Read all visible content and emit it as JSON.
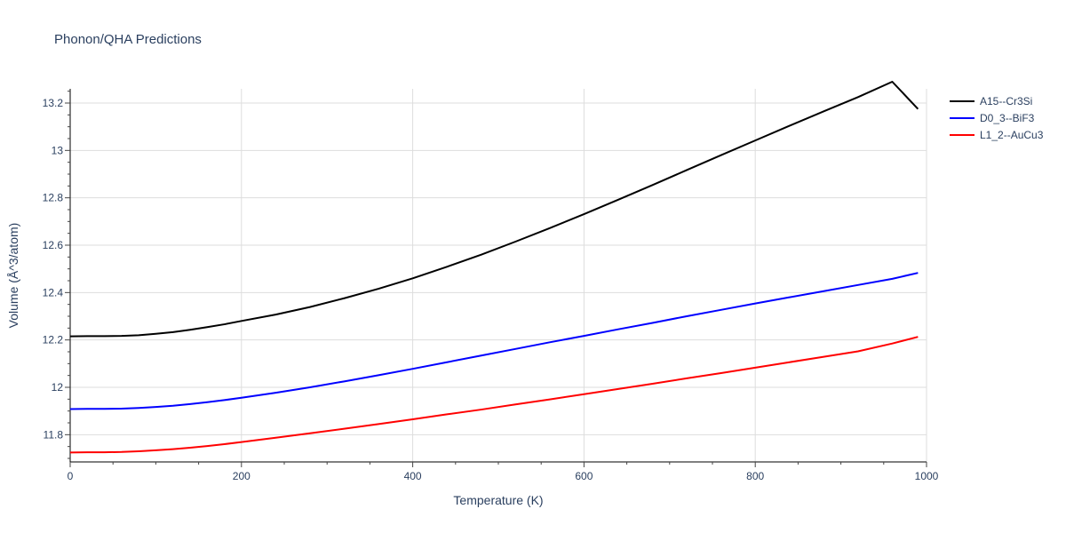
{
  "chart_data": {
    "type": "line",
    "title": "Phonon/QHA Predictions",
    "xlabel": "Temperature (K)",
    "ylabel": "Volume (Å^3/atom)",
    "xlim": [
      0,
      1000
    ],
    "ylim": [
      11.685,
      13.26
    ],
    "x_ticks": [
      0,
      200,
      400,
      600,
      800,
      1000
    ],
    "y_ticks": [
      11.8,
      12,
      12.2,
      12.4,
      12.6,
      12.8,
      13,
      13.2
    ],
    "y_tick_labels": [
      "11.8",
      "12",
      "12.2",
      "12.4",
      "12.6",
      "12.8",
      "13",
      "13.2"
    ],
    "grid": true,
    "legend_position": "top-right",
    "series": [
      {
        "name": "A15--Cr3Si",
        "color": "#000000",
        "x": [
          0,
          20,
          40,
          60,
          80,
          100,
          120,
          140,
          160,
          180,
          200,
          240,
          280,
          320,
          360,
          400,
          440,
          480,
          520,
          560,
          600,
          640,
          680,
          720,
          760,
          800,
          840,
          880,
          920,
          960,
          990
        ],
        "y": [
          12.215,
          12.216,
          12.216,
          12.217,
          12.22,
          12.226,
          12.233,
          12.243,
          12.254,
          12.266,
          12.28,
          12.307,
          12.339,
          12.376,
          12.416,
          12.46,
          12.509,
          12.56,
          12.615,
          12.672,
          12.731,
          12.792,
          12.854,
          12.917,
          12.98,
          13.042,
          13.104,
          13.165,
          13.225,
          13.29,
          13.175
        ]
      },
      {
        "name": "D0_3--BiF3",
        "color": "#0000ff",
        "x": [
          0,
          20,
          40,
          60,
          80,
          100,
          120,
          140,
          160,
          180,
          200,
          240,
          280,
          320,
          360,
          400,
          440,
          480,
          520,
          560,
          600,
          640,
          680,
          720,
          760,
          800,
          840,
          880,
          920,
          960,
          990
        ],
        "y": [
          11.908,
          11.909,
          11.909,
          11.91,
          11.913,
          11.917,
          11.922,
          11.929,
          11.937,
          11.946,
          11.956,
          11.977,
          12.0,
          12.025,
          12.051,
          12.078,
          12.106,
          12.134,
          12.162,
          12.19,
          12.217,
          12.245,
          12.272,
          12.3,
          12.327,
          12.354,
          12.38,
          12.406,
          12.432,
          12.458,
          12.483
        ]
      },
      {
        "name": "L1_2--AuCu3",
        "color": "#ff0000",
        "x": [
          0,
          20,
          40,
          60,
          80,
          100,
          120,
          140,
          160,
          180,
          200,
          240,
          280,
          320,
          360,
          400,
          440,
          480,
          520,
          560,
          600,
          640,
          680,
          720,
          760,
          800,
          840,
          880,
          920,
          960,
          990
        ],
        "y": [
          11.725,
          11.726,
          11.726,
          11.727,
          11.73,
          11.734,
          11.739,
          11.745,
          11.752,
          11.76,
          11.769,
          11.787,
          11.806,
          11.825,
          11.845,
          11.865,
          11.886,
          11.906,
          11.928,
          11.949,
          11.971,
          11.993,
          12.015,
          12.038,
          12.06,
          12.083,
          12.106,
          12.129,
          12.152,
          12.185,
          12.213
        ]
      }
    ]
  }
}
